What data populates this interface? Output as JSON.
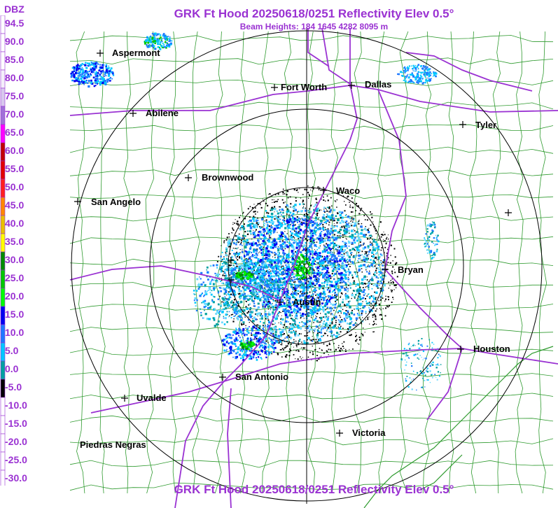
{
  "header": {
    "title": "GRK Ft Hood 20250618/0251 Reflectivity Elev 0.5°",
    "subtitle": "Beam Heights: 184 1645 4282 8095 m",
    "footer_title": "GRK Ft Hood 20250618/0251 Reflectivity Elev 0.5°"
  },
  "legend": {
    "title": "DBZ",
    "entries": [
      {
        "label": "94.5",
        "color": "#ffffff"
      },
      {
        "label": "90.0",
        "color": "#ffffff"
      },
      {
        "label": "85.0",
        "color": "#ffffff"
      },
      {
        "label": "80.0",
        "color": "#f4eefa"
      },
      {
        "label": "75.0",
        "color": "#d8c8ee"
      },
      {
        "label": "70.0",
        "color": "#a070d8"
      },
      {
        "label": "65.0",
        "color": "#ff00ff"
      },
      {
        "label": "60.0",
        "color": "#c00000"
      },
      {
        "label": "55.0",
        "color": "#e00000"
      },
      {
        "label": "50.0",
        "color": "#ff2020"
      },
      {
        "label": "45.0",
        "color": "#ff8800"
      },
      {
        "label": "40.0",
        "color": "#e8c000"
      },
      {
        "label": "35.0",
        "color": "#ffff00"
      },
      {
        "label": "30.0",
        "color": "#008c00"
      },
      {
        "label": "25.0",
        "color": "#00c800"
      },
      {
        "label": "20.0",
        "color": "#00ff00"
      },
      {
        "label": "15.0",
        "color": "#0000f0"
      },
      {
        "label": "10.0",
        "color": "#1e78ff"
      },
      {
        "label": "5.0",
        "color": "#00c8ff"
      },
      {
        "label": "0.0",
        "color": "#00a0a0"
      },
      {
        "label": "-5.0",
        "color": "#000000"
      },
      {
        "label": "-10.0",
        "color": "#ffffff"
      },
      {
        "label": "-15.0",
        "color": "#ffffff"
      },
      {
        "label": "-20.0",
        "color": "#ffffff"
      },
      {
        "label": "-25.0",
        "color": "#ffffff"
      },
      {
        "label": "-30.0",
        "color": "#ffffff"
      }
    ]
  },
  "cities": [
    {
      "name": "Aspermont"
    },
    {
      "name": "Fort Worth"
    },
    {
      "name": "Dallas"
    },
    {
      "name": "Abilene"
    },
    {
      "name": "Tyler"
    },
    {
      "name": "Brownwood"
    },
    {
      "name": "Waco"
    },
    {
      "name": "San Angelo"
    },
    {
      "name": "Bryan"
    },
    {
      "name": "Austin"
    },
    {
      "name": "Houston"
    },
    {
      "name": "San Antonio"
    },
    {
      "name": "Uvalde"
    },
    {
      "name": "Victoria"
    },
    {
      "name": "Piedras Negras"
    }
  ],
  "colors": {
    "title": "#9a32d2",
    "county_lines": "#2e9a2e",
    "highways": "#9a32d2",
    "range_rings": "#000000"
  }
}
